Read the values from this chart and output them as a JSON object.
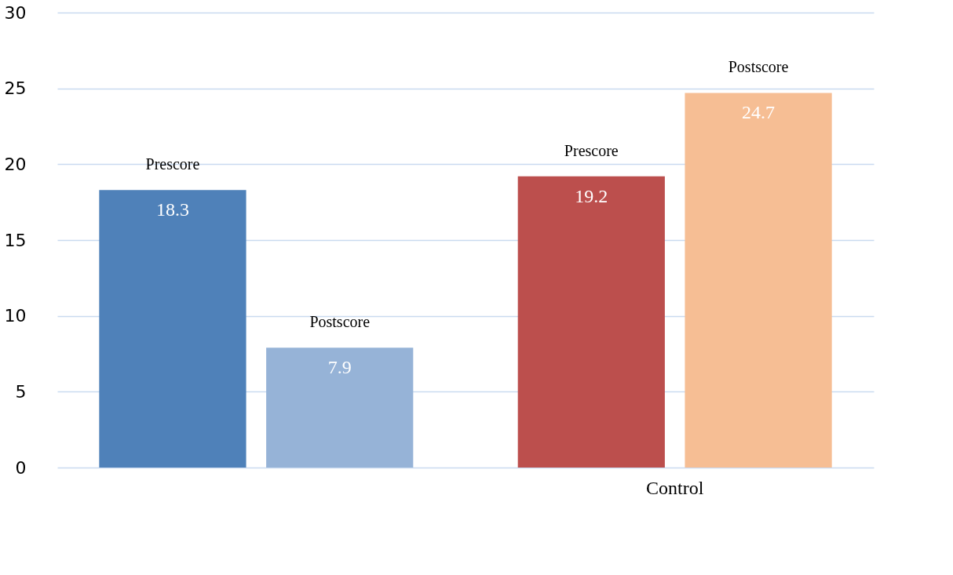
{
  "chart_data": {
    "type": "bar",
    "categories": [
      null,
      "Control"
    ],
    "series": [
      {
        "name": "Prescore",
        "colors": [
          "#4f81b9",
          "#bc4f4d"
        ],
        "values": [
          18.3,
          19.2
        ]
      },
      {
        "name": "Postscore",
        "colors": [
          "#96b3d7",
          "#f6be94"
        ],
        "values": [
          7.9,
          24.7
        ]
      }
    ],
    "ylim": [
      0,
      30
    ],
    "yticks": [
      0,
      5,
      10,
      15,
      20,
      25,
      30
    ],
    "grid": "y",
    "data_labels": true
  }
}
